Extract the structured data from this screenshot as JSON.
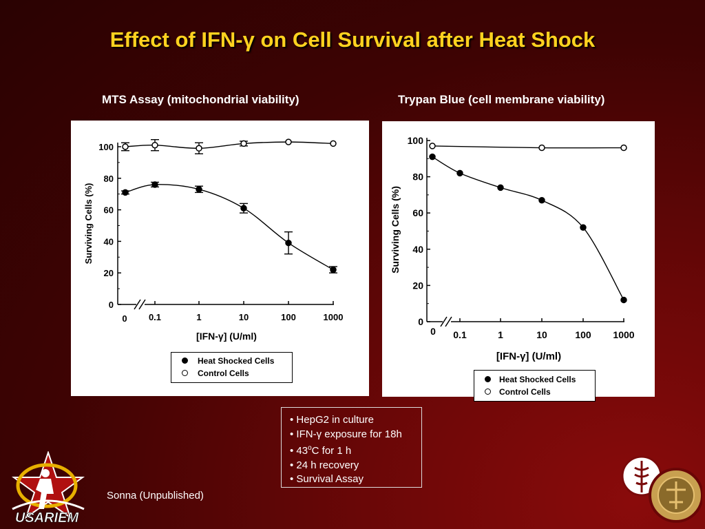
{
  "slide": {
    "title": "Effect of IFN-γ on Cell Survival after Heat Shock",
    "credit": "Sonna (Unpublished)",
    "bullets": [
      "HepG2 in culture",
      "IFN-γ exposure for 18h",
      "43oC for 1 h",
      "24 h recovery",
      "Survival Assay"
    ],
    "logo_left_text": "USARIEM",
    "colors": {
      "title": "#ffd21f",
      "background": "#5a0505"
    }
  },
  "chart_data": [
    {
      "type": "line",
      "title": "MTS Assay (mitochondrial viability)",
      "xlabel": "[IFN-γ] (U/ml)",
      "ylabel": "Surviving Cells (%)",
      "x_categories": [
        "0",
        "0.1",
        "1",
        "10",
        "100",
        "1000"
      ],
      "x_scale": "log with axis break",
      "ylim": [
        0,
        100
      ],
      "y_ticks": [
        "0",
        "20",
        "40",
        "60",
        "80",
        "100"
      ],
      "legend_position": "bottom-right",
      "series": [
        {
          "name": "Heat Shocked Cells",
          "marker": "filled",
          "x": [
            "0",
            "0.1",
            "1",
            "10",
            "100",
            "1000"
          ],
          "y": [
            71,
            76,
            73,
            61,
            39,
            22
          ],
          "err": [
            1,
            1.5,
            2,
            3,
            7,
            2
          ]
        },
        {
          "name": "Control Cells",
          "marker": "open",
          "x": [
            "0",
            "0.1",
            "1",
            "10",
            "100",
            "1000"
          ],
          "y": [
            100,
            101,
            99,
            102,
            103,
            102
          ],
          "err": [
            2.5,
            3.5,
            3.5,
            1.5,
            0,
            0
          ]
        }
      ]
    },
    {
      "type": "line",
      "title": "Trypan Blue (cell membrane viability)",
      "xlabel": "[IFN-γ] (U/ml)",
      "ylabel": "Surviving Cells (%)",
      "x_categories": [
        "0",
        "0.1",
        "1",
        "10",
        "100",
        "1000"
      ],
      "x_scale": "log with axis break",
      "ylim": [
        0,
        100
      ],
      "y_ticks": [
        "0",
        "20",
        "40",
        "60",
        "80",
        "100"
      ],
      "legend_position": "bottom-right",
      "series": [
        {
          "name": "Heat Shocked Cells",
          "marker": "filled",
          "x": [
            "0",
            "0.1",
            "1",
            "10",
            "100",
            "1000"
          ],
          "y": [
            91,
            82,
            74,
            67,
            52,
            12
          ]
        },
        {
          "name": "Control Cells",
          "marker": "open",
          "x": [
            "0",
            "10",
            "1000"
          ],
          "y": [
            97,
            96,
            96
          ]
        }
      ]
    }
  ]
}
